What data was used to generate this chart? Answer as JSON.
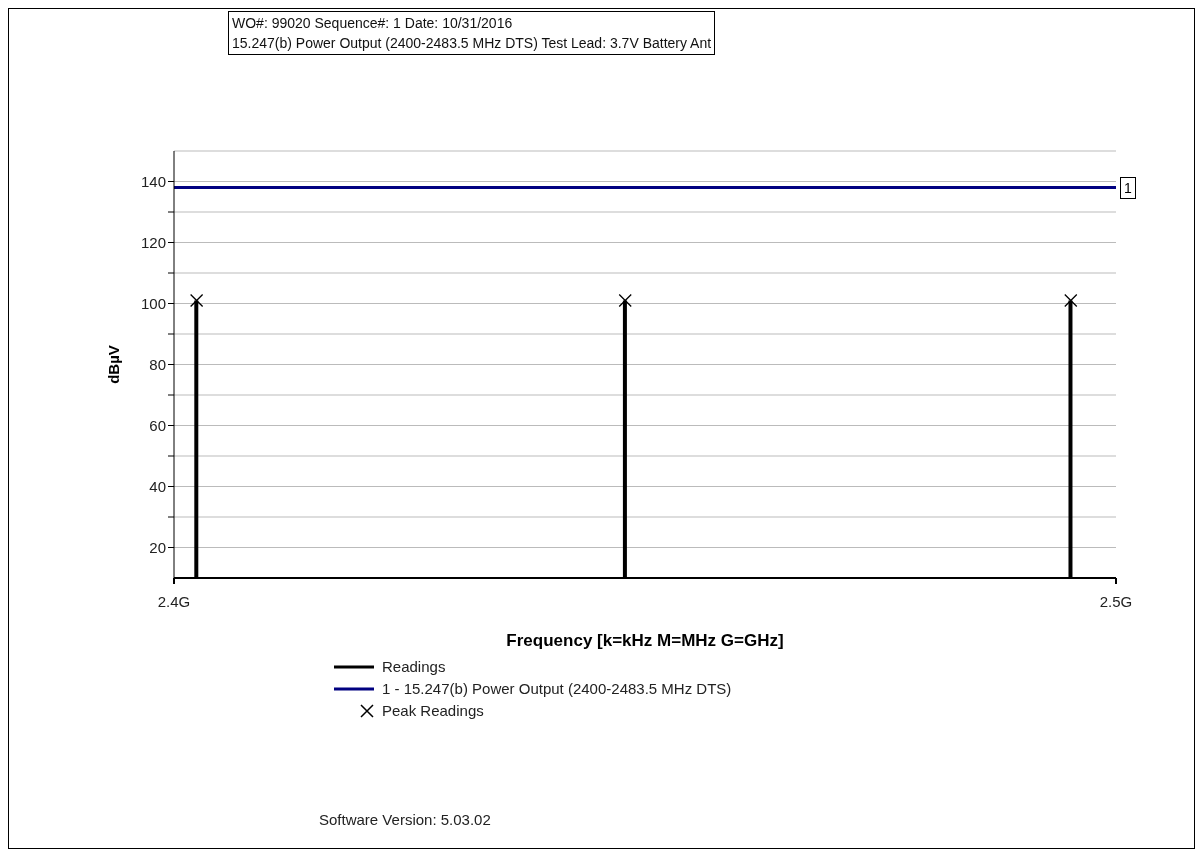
{
  "chart_data": {
    "type": "bar",
    "title": "WO#: 99020 Sequence#: 1 Date: 10/31/2016",
    "subtitle": "15.247(b) Power Output (2400-2483.5 MHz DTS) Test Lead: 3.7V Battery Ant",
    "xlabel": "Frequency [k=kHz M=MHz G=GHz]",
    "ylabel": "dBµV",
    "x": [
      2.4024,
      2.4479,
      2.4952
    ],
    "series": [
      {
        "name": "Readings",
        "type": "bar",
        "color": "#000000",
        "values": [
          101,
          101,
          101
        ]
      },
      {
        "name": "1 - 15.247(b) Power Output (2400-2483.5 MHz DTS)",
        "type": "line",
        "color": "#000080",
        "x": [
          2.4,
          2.5
        ],
        "values": [
          138,
          138
        ]
      },
      {
        "name": "Peak Readings",
        "type": "scatter",
        "color": "#000000",
        "marker": "cross",
        "values": [
          101,
          101,
          101
        ]
      }
    ],
    "xlim": [
      2.4,
      2.5
    ],
    "xticks": [
      {
        "value": 2.4,
        "label": "2.4G"
      },
      {
        "value": 2.5,
        "label": "2.5G"
      }
    ],
    "ylim": [
      10,
      150
    ],
    "yticks": [
      20,
      {
        "value": 30,
        "label": null
      },
      40,
      {
        "value": 50,
        "label": null
      },
      60,
      {
        "value": 70,
        "label": null
      },
      80,
      {
        "value": 90,
        "label": null
      },
      100,
      {
        "value": 110,
        "label": null
      },
      120,
      {
        "value": 130,
        "label": null
      },
      140
    ],
    "grid": "y",
    "legend": "bottom",
    "annotations": [
      {
        "text": "1",
        "x": 2.5,
        "y": 138
      },
      "Software Version: 5.03.02"
    ]
  }
}
